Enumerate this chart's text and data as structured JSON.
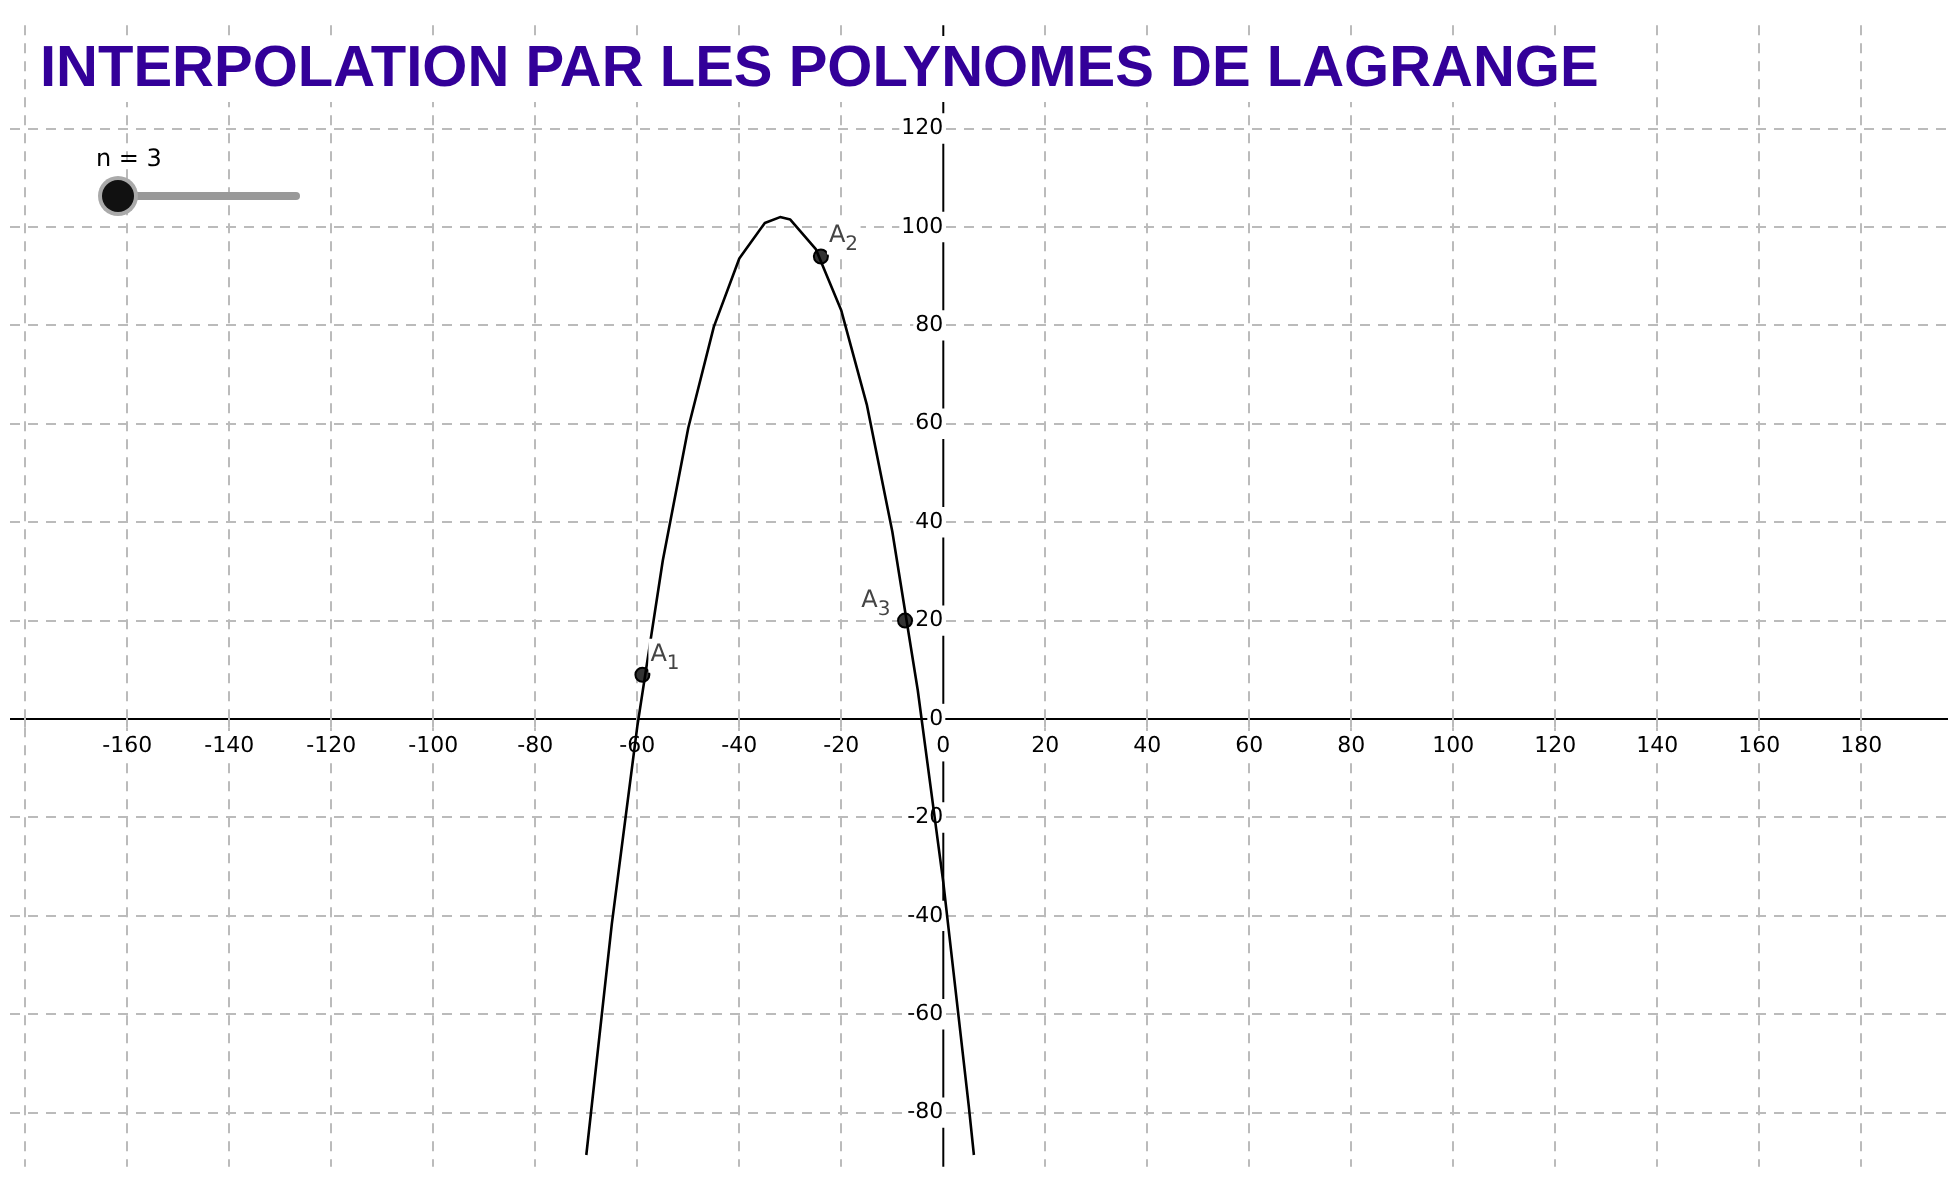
{
  "chart_data": {
    "type": "line",
    "title": "INTERPOLATION PAR LES POLYNOMES DE LAGRANGE",
    "xlim": [
      -183,
      197
    ],
    "ylim": [
      -91,
      141
    ],
    "xticks": [
      {
        "value": -180,
        "label": null
      },
      -160,
      -140,
      -120,
      -100,
      -80,
      -60,
      -40,
      -20,
      0,
      20,
      40,
      60,
      80,
      100,
      120,
      140,
      160,
      180
    ],
    "yticks": [
      -80,
      -60,
      -40,
      -20,
      0,
      20,
      40,
      60,
      80,
      100,
      120
    ],
    "grid": true,
    "legend": false,
    "series": [
      {
        "type": "line",
        "color": "#000000",
        "marker": "none",
        "x": [
          -70,
          -65,
          -60,
          -55,
          -50,
          -45,
          -40,
          -35,
          -32,
          -30,
          -25,
          -20,
          -15,
          -10,
          -5,
          0,
          5,
          6
        ],
        "values": [
          -88.6,
          -41.7,
          -1.5,
          32.2,
          59.2,
          79.7,
          93.6,
          100.8,
          102,
          101.5,
          95.5,
          83,
          63.9,
          38.1,
          5.8,
          -33.2,
          -78.7,
          -88.6
        ]
      },
      {
        "type": "scatter",
        "color": "#333333",
        "marker": "circle",
        "x": [
          -59,
          -24,
          -7.5
        ],
        "values": [
          9,
          94,
          20
        ]
      }
    ],
    "annotations": [
      {
        "text": "A$_{1}$",
        "x": -59,
        "y": 9
      },
      {
        "text": "A$_{2}$",
        "x": -24,
        "y": 94
      },
      {
        "text": "A$_{3}$",
        "x": -7.5,
        "y": 20
      },
      "n = 3"
    ]
  }
}
